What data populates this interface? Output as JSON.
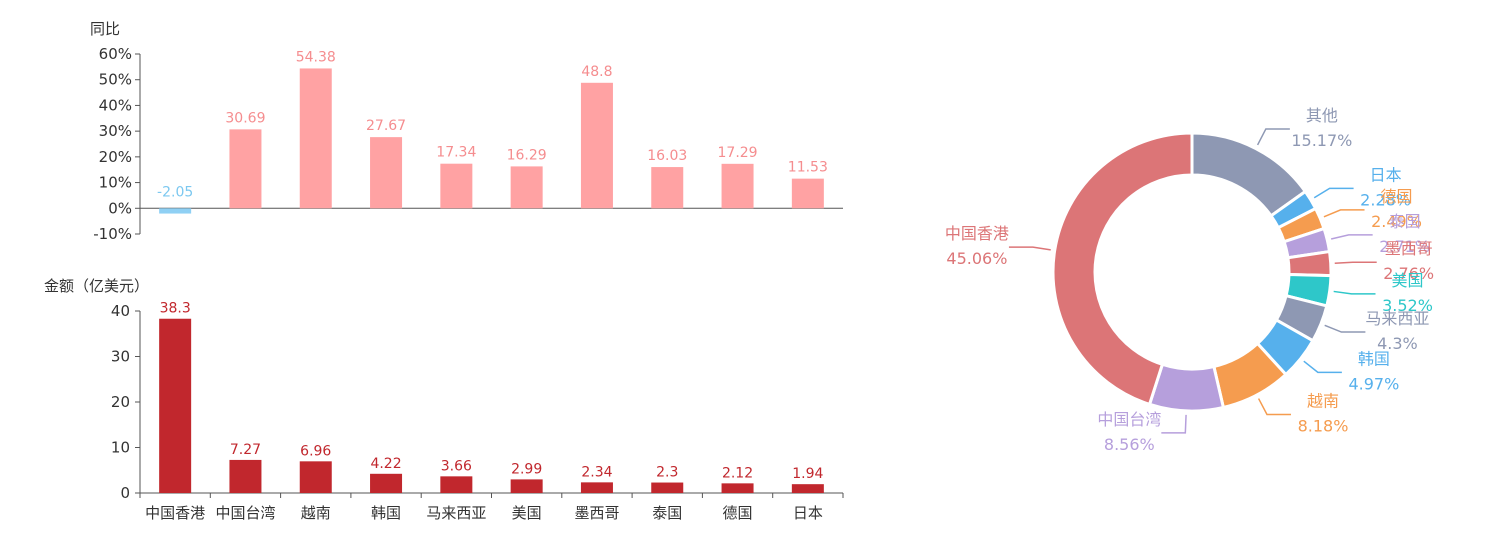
{
  "colors": {
    "growth_pos": "#ffa2a3",
    "growth_neg": "#8fd0f4",
    "growth_label_pos": "#f58d8f",
    "growth_label_neg": "#7cc8f0",
    "amount": "#c1272d",
    "amount_label": "#c1272d",
    "axis": "#555555"
  },
  "chart_data": [
    {
      "type": "bar",
      "ylabel": "同比",
      "categories": [
        "中国香港",
        "中国台湾",
        "越南",
        "韩国",
        "马来西亚",
        "美国",
        "墨西哥",
        "泰国",
        "德国",
        "日本"
      ],
      "values": [
        -2.05,
        30.69,
        54.38,
        27.67,
        17.34,
        16.29,
        48.8,
        16.03,
        17.29,
        11.53
      ],
      "value_labels": [
        "-2.05",
        "30.69",
        "54.38",
        "27.67",
        "17.34",
        "16.29",
        "48.8",
        "16.03",
        "17.29",
        "11.53"
      ],
      "ylim": [
        -10,
        60
      ],
      "yticks": [
        "60%",
        "50%",
        "40%",
        "30%",
        "20%",
        "10%",
        "0%",
        "-10%"
      ],
      "ytick_values": [
        60,
        50,
        40,
        30,
        20,
        10,
        0,
        -10
      ]
    },
    {
      "type": "bar",
      "ylabel": "金额（亿美元）",
      "categories": [
        "中国香港",
        "中国台湾",
        "越南",
        "韩国",
        "马来西亚",
        "美国",
        "墨西哥",
        "泰国",
        "德国",
        "日本"
      ],
      "values": [
        38.3,
        7.27,
        6.96,
        4.22,
        3.66,
        2.99,
        2.34,
        2.3,
        2.12,
        1.94
      ],
      "value_labels": [
        "38.3",
        "7.27",
        "6.96",
        "4.22",
        "3.66",
        "2.99",
        "2.34",
        "2.3",
        "2.12",
        "1.94"
      ],
      "ylim": [
        0,
        40
      ],
      "yticks": [
        "40",
        "30",
        "20",
        "10",
        "0"
      ],
      "ytick_values": [
        40,
        30,
        20,
        10,
        0
      ]
    },
    {
      "type": "pie",
      "donut": true,
      "slices": [
        {
          "name": "其他",
          "value": 15.17,
          "label": "15.17%",
          "color": "#8e98b3"
        },
        {
          "name": "日本",
          "value": 2.28,
          "label": "2.28%",
          "color": "#56b0ec"
        },
        {
          "name": "德国",
          "value": 2.49,
          "label": "2.49%",
          "color": "#f59c4f"
        },
        {
          "name": "泰国",
          "value": 2.71,
          "label": "2.71%",
          "color": "#b69fdc"
        },
        {
          "name": "墨西哥",
          "value": 2.76,
          "label": "2.76%",
          "color": "#dc7577"
        },
        {
          "name": "美国",
          "value": 3.52,
          "label": "3.52%",
          "color": "#2ec7c9"
        },
        {
          "name": "马来西亚",
          "value": 4.3,
          "label": "4.3%",
          "color": "#8e98b3"
        },
        {
          "name": "韩国",
          "value": 4.97,
          "label": "4.97%",
          "color": "#56b0ec"
        },
        {
          "name": "越南",
          "value": 8.18,
          "label": "8.18%",
          "color": "#f59c4f"
        },
        {
          "name": "中国台湾",
          "value": 8.56,
          "label": "8.56%",
          "color": "#b69fdc"
        },
        {
          "name": "中国香港",
          "value": 45.06,
          "label": "45.06%",
          "color": "#dc7577"
        }
      ]
    }
  ]
}
